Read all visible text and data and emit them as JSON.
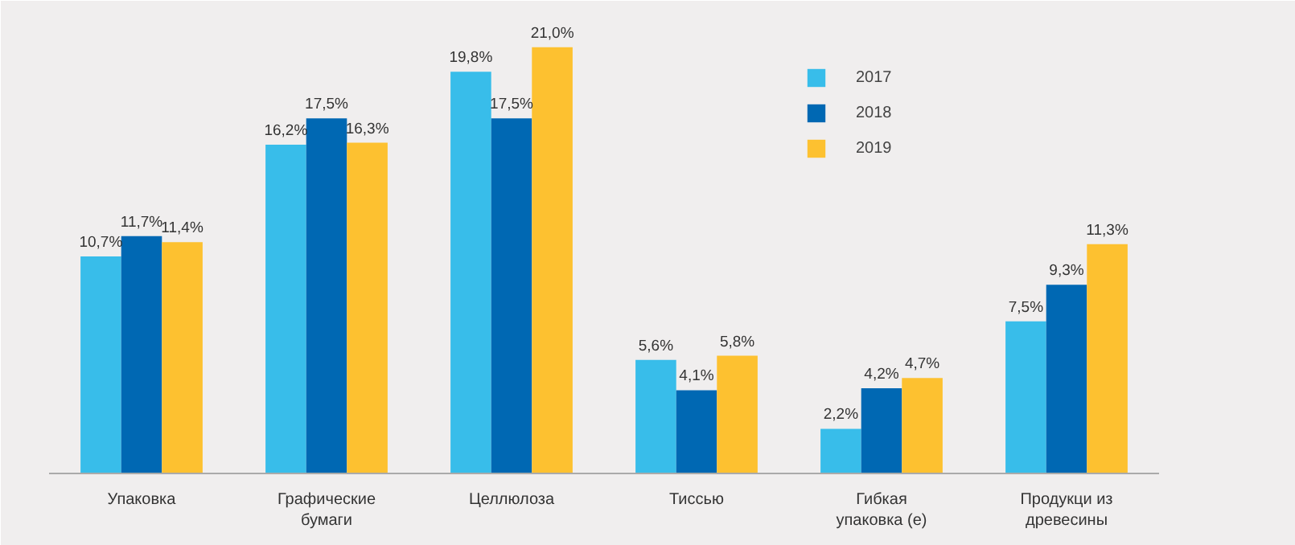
{
  "chart_data": {
    "type": "bar",
    "categories": [
      "Упаковка",
      "Графические\nбумаги",
      "Целлюлоза",
      "Тиссью",
      "Гибкая\nупаковка (e)",
      "Продукци из\nдревесины"
    ],
    "series": [
      {
        "name": "2017",
        "color": "#38bdea",
        "values": [
          10.7,
          16.2,
          19.8,
          5.6,
          2.2,
          7.5
        ],
        "value_labels": [
          "10,7%",
          "16,2%",
          "19,8%",
          "5,6%",
          "2,2%",
          "7,5%"
        ]
      },
      {
        "name": "2018",
        "color": "#0068b3",
        "values": [
          11.7,
          17.5,
          17.5,
          4.1,
          4.2,
          9.3
        ],
        "value_labels": [
          "11,7%",
          "17,5%",
          "17,5%",
          "4,1%",
          "4,2%",
          "9,3%"
        ]
      },
      {
        "name": "2019",
        "color": "#fdc130",
        "values": [
          11.4,
          16.3,
          21.0,
          5.8,
          4.7,
          11.3
        ],
        "value_labels": [
          "11,4%",
          "16,3%",
          "21,0%",
          "5,8%",
          "4,7%",
          "11,3%"
        ]
      }
    ],
    "ylim": [
      0,
      22.5
    ],
    "legend": "top",
    "grid": false
  }
}
